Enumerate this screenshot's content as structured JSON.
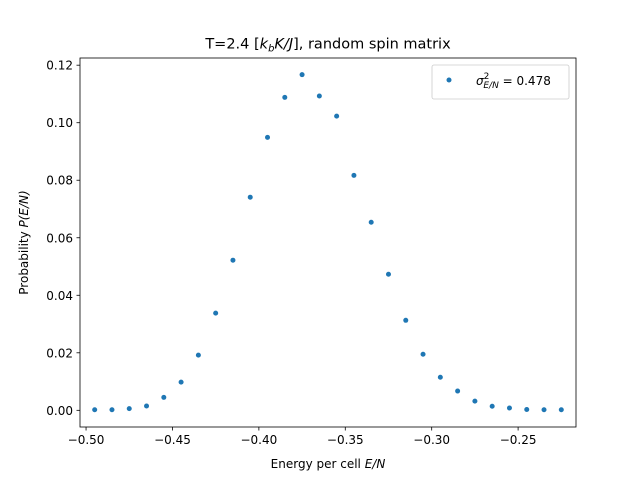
{
  "chart_data": {
    "type": "scatter",
    "title": "T=2.4 [k_bK/J], random spin matrix",
    "title_parts": {
      "prefix": "T=2.4 [",
      "k": "k",
      "k_sub": "b",
      "rest_italic": "K/J",
      "suffix": "], random spin matrix"
    },
    "xlabel": "Energy per cell E/N",
    "xlabel_parts": {
      "text": "Energy per cell ",
      "italic": "E/N"
    },
    "ylabel": "Probability P(E/N)",
    "ylabel_parts": {
      "text": "Probability ",
      "italic": "P(E/N)"
    },
    "xlim": [
      -0.5035,
      -0.2165
    ],
    "ylim": [
      -0.0058,
      0.1225
    ],
    "xticks": [
      -0.5,
      -0.45,
      -0.4,
      -0.35,
      -0.3,
      -0.25
    ],
    "xtick_labels": [
      "−0.50",
      "−0.45",
      "−0.40",
      "−0.35",
      "−0.30",
      "−0.25"
    ],
    "yticks": [
      0.0,
      0.02,
      0.04,
      0.06,
      0.08,
      0.1,
      0.12
    ],
    "ytick_labels": [
      "0.00",
      "0.02",
      "0.04",
      "0.06",
      "0.08",
      "0.10",
      "0.12"
    ],
    "grid": false,
    "legend_position": "top-right",
    "series": [
      {
        "name": "σ²_{E/N} = 0.478",
        "legend_parts": {
          "sigma": "σ",
          "sup": "2",
          "sub": "E/N",
          "value": " = 0.478"
        },
        "color": "#1f77b4",
        "x": [
          -0.495,
          -0.485,
          -0.475,
          -0.465,
          -0.455,
          -0.445,
          -0.435,
          -0.425,
          -0.415,
          -0.405,
          -0.395,
          -0.385,
          -0.375,
          -0.365,
          -0.355,
          -0.345,
          -0.335,
          -0.325,
          -0.315,
          -0.305,
          -0.295,
          -0.285,
          -0.275,
          -0.265,
          -0.255,
          -0.245,
          -0.235,
          -0.225
        ],
        "y": [
          0.0002,
          0.0002,
          0.0006,
          0.0015,
          0.0045,
          0.0098,
          0.0192,
          0.0338,
          0.0522,
          0.0741,
          0.0949,
          0.1088,
          0.1167,
          0.1093,
          0.1023,
          0.0817,
          0.0654,
          0.0473,
          0.0313,
          0.0195,
          0.0115,
          0.0067,
          0.0032,
          0.0014,
          0.0008,
          0.0003,
          0.0002,
          0.0002
        ]
      }
    ]
  }
}
